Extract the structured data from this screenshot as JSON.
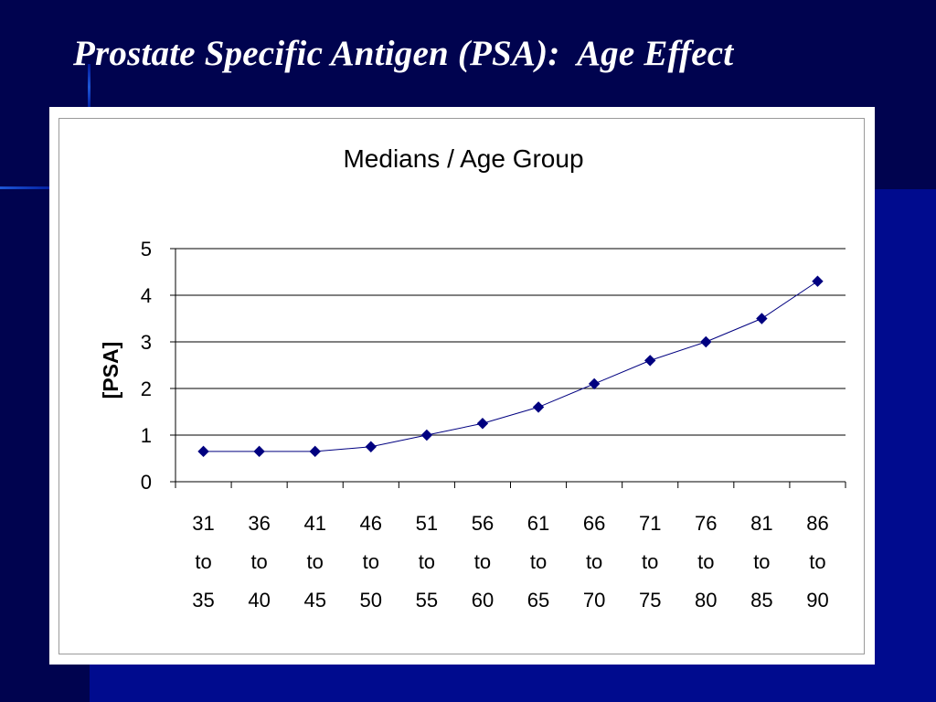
{
  "slide": {
    "title": "Prostate Specific Antigen (PSA):  Age Effect"
  },
  "colors": {
    "background": "#000b8e",
    "background_dark": "#00034f",
    "series_line": "#000080",
    "chart_panel": "#ffffff"
  },
  "chart_data": {
    "type": "line",
    "title": "Medians / Age Group",
    "xlabel": "",
    "ylabel": "[PSA]",
    "ylim": [
      0,
      5
    ],
    "yticks": [
      "0",
      "1",
      "2",
      "3",
      "4",
      "5"
    ],
    "categories": [
      [
        "31",
        "to",
        "35"
      ],
      [
        "36",
        "to",
        "40"
      ],
      [
        "41",
        "to",
        "45"
      ],
      [
        "46",
        "to",
        "50"
      ],
      [
        "51",
        "to",
        "55"
      ],
      [
        "56",
        "to",
        "60"
      ],
      [
        "61",
        "to",
        "65"
      ],
      [
        "66",
        "to",
        "70"
      ],
      [
        "71",
        "to",
        "75"
      ],
      [
        "76",
        "to",
        "80"
      ],
      [
        "81",
        "to",
        "85"
      ],
      [
        "86",
        "to",
        "90"
      ]
    ],
    "series": [
      {
        "values": [
          0.65,
          0.65,
          0.65,
          0.75,
          1.0,
          1.25,
          1.6,
          2.1,
          2.6,
          3.0,
          3.5,
          4.3
        ]
      }
    ],
    "grid": true,
    "legend": "none"
  }
}
